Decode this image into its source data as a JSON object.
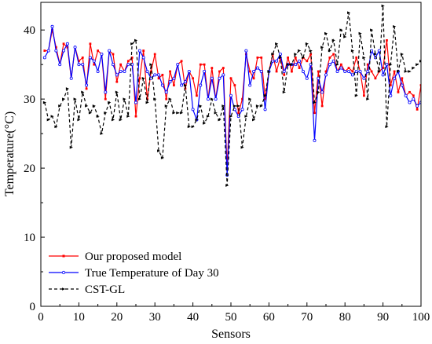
{
  "chart_data": {
    "type": "line",
    "xlabel": "Sensors",
    "ylabel": "Temperature(°C)",
    "xlim": [
      0,
      100
    ],
    "ylim": [
      0,
      44
    ],
    "xticks": [
      "0",
      "10",
      "20",
      "30",
      "40",
      "50",
      "60",
      "70",
      "80",
      "90",
      "100"
    ],
    "yticks": [
      "0",
      "10",
      "20",
      "30",
      "40"
    ],
    "legend_position": "lower-left",
    "grid": false,
    "series": [
      {
        "name": "Our proposed model",
        "color": "#ff0000",
        "style": "solid",
        "values": [
          37.0,
          37.0,
          40.0,
          37.5,
          35.0,
          38.0,
          37.5,
          33.0,
          37.5,
          35.5,
          36.0,
          31.5,
          38.0,
          35.0,
          37.0,
          36.5,
          30.0,
          37.0,
          36.5,
          32.5,
          35.0,
          34.0,
          35.5,
          36.0,
          27.5,
          33.0,
          37.0,
          30.0,
          34.0,
          36.5,
          33.0,
          33.5,
          30.0,
          34.0,
          32.0,
          35.0,
          35.5,
          31.5,
          34.0,
          33.0,
          30.5,
          35.0,
          35.0,
          30.0,
          34.5,
          30.0,
          34.0,
          34.5,
          20.0,
          33.0,
          32.0,
          28.0,
          30.0,
          36.5,
          34.0,
          33.0,
          36.0,
          36.0,
          30.0,
          34.0,
          36.5,
          34.0,
          36.0,
          33.5,
          36.0,
          34.0,
          36.0,
          34.5,
          36.0,
          35.5,
          36.5,
          28.0,
          34.0,
          29.0,
          34.0,
          36.0,
          36.5,
          34.0,
          35.0,
          34.0,
          34.5,
          34.0,
          36.0,
          34.0,
          30.5,
          35.0,
          34.0,
          33.0,
          34.0,
          34.5,
          38.5,
          32.0,
          34.0,
          31.0,
          33.0,
          30.5,
          31.0,
          30.5,
          28.5,
          32.0
        ]
      },
      {
        "name": "True Temperature of Day 30",
        "color": "#0000ff",
        "style": "solid",
        "values": [
          36.0,
          37.0,
          40.5,
          37.0,
          35.0,
          37.0,
          38.0,
          33.0,
          37.5,
          35.0,
          35.0,
          32.0,
          36.0,
          35.5,
          34.0,
          36.5,
          31.0,
          37.0,
          35.0,
          33.5,
          34.0,
          34.0,
          35.0,
          35.0,
          29.5,
          37.0,
          36.0,
          34.0,
          33.0,
          33.5,
          33.5,
          32.0,
          31.0,
          32.5,
          33.0,
          35.0,
          32.0,
          32.5,
          34.0,
          28.5,
          27.0,
          32.0,
          34.0,
          30.0,
          33.0,
          30.0,
          33.0,
          33.5,
          19.0,
          30.5,
          28.5,
          27.5,
          28.5,
          37.0,
          32.0,
          34.0,
          34.5,
          34.0,
          28.5,
          34.0,
          35.5,
          35.5,
          36.5,
          34.0,
          35.0,
          35.0,
          35.0,
          35.5,
          34.0,
          33.0,
          35.0,
          24.0,
          33.0,
          31.0,
          33.5,
          35.0,
          35.5,
          34.0,
          34.5,
          34.0,
          34.0,
          33.5,
          34.0,
          34.0,
          33.0,
          34.0,
          37.0,
          36.0,
          37.0,
          33.5,
          35.0,
          30.5,
          33.0,
          34.0,
          32.0,
          30.5,
          29.5,
          30.0,
          29.0,
          29.5
        ]
      },
      {
        "name": "CST-GL",
        "color": "#000000",
        "style": "dashed",
        "values": [
          29.5,
          27.0,
          27.5,
          26.0,
          29.0,
          30.0,
          31.5,
          23.0,
          30.0,
          27.0,
          31.0,
          29.0,
          28.0,
          29.0,
          27.5,
          25.0,
          28.0,
          29.5,
          27.0,
          31.0,
          27.0,
          30.0,
          27.5,
          38.0,
          38.5,
          30.0,
          33.0,
          29.5,
          35.0,
          30.0,
          22.5,
          21.5,
          29.0,
          30.0,
          28.0,
          28.0,
          28.0,
          32.0,
          26.0,
          26.0,
          27.0,
          29.0,
          26.5,
          27.5,
          30.0,
          28.0,
          27.0,
          29.0,
          17.5,
          27.5,
          29.0,
          29.0,
          23.0,
          27.5,
          30.0,
          27.0,
          29.0,
          29.0,
          30.5,
          34.0,
          36.5,
          38.0,
          36.0,
          31.0,
          35.0,
          35.0,
          36.5,
          37.0,
          36.0,
          38.0,
          37.0,
          29.5,
          31.0,
          37.5,
          39.5,
          37.0,
          38.5,
          35.0,
          40.0,
          39.0,
          42.5,
          37.0,
          30.5,
          39.5,
          36.0,
          30.0,
          40.0,
          36.5,
          34.0,
          43.5,
          26.0,
          35.0,
          40.5,
          34.0,
          36.5,
          34.0,
          34.0,
          34.5,
          35.0,
          35.5
        ]
      }
    ]
  }
}
